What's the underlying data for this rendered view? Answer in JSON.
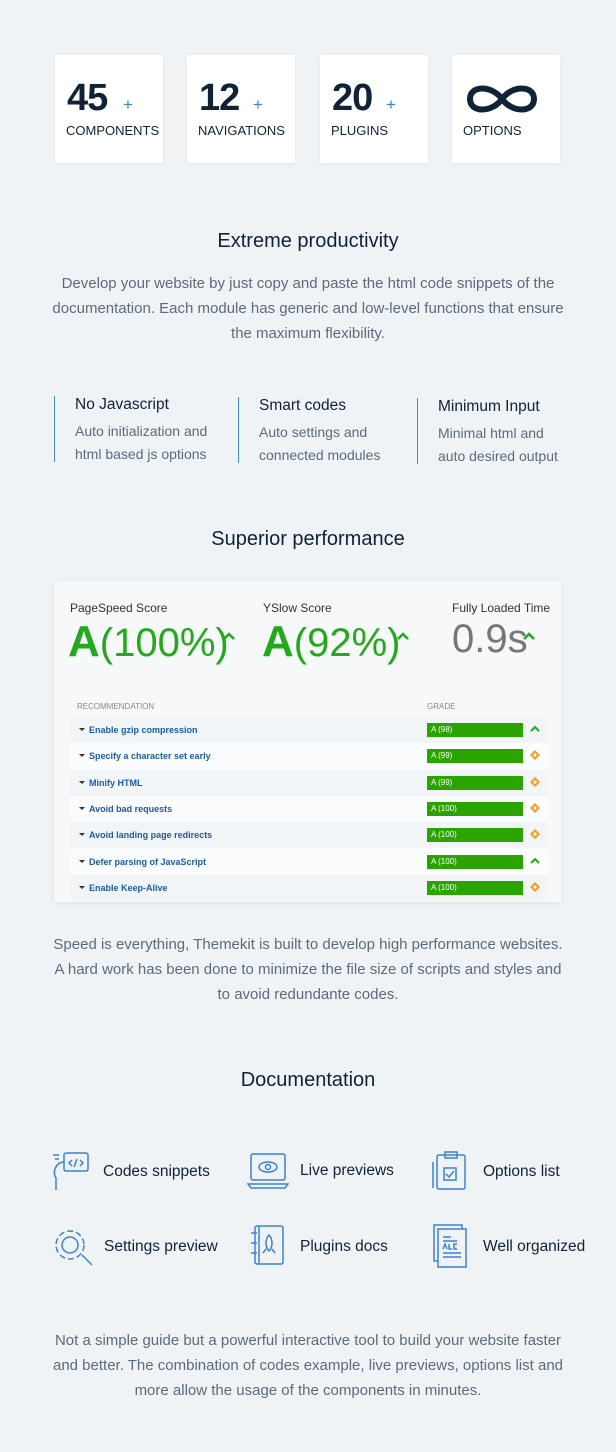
{
  "stats": [
    {
      "number": "45",
      "plus": "+",
      "label": "COMPONENTS"
    },
    {
      "number": "12",
      "plus": "+",
      "label": "NAVIGATIONS"
    },
    {
      "number": "20",
      "plus": "+",
      "label": "PLUGINS"
    },
    {
      "label": "OPTIONS"
    }
  ],
  "productivity": {
    "title": "Extreme productivity",
    "text": "Develop your website by just copy and paste the html code snippets of the documentation. Each module has generic and low-level functions that ensure the maximum flexibility.",
    "features": [
      {
        "title": "No Javascript",
        "text": "Auto initialization and html based js options"
      },
      {
        "title": "Smart codes",
        "text": "Auto settings and connected modules"
      },
      {
        "title": "Minimum Input",
        "text": "Minimal html and auto desired output"
      }
    ]
  },
  "performance": {
    "title": "Superior performance",
    "scores": [
      {
        "label": "PageSpeed Score",
        "grade": "A",
        "value": "(100%)"
      },
      {
        "label": "YSlow Score",
        "grade": "A",
        "value": "(92%)"
      },
      {
        "label": "Fully Loaded Time",
        "value": "0.9s"
      }
    ],
    "table": {
      "header": [
        "RECOMMENDATION",
        "GRADE"
      ],
      "rows": [
        [
          "Enable gzip compression",
          "A (98)"
        ],
        [
          "Specify a character set early",
          "A (99)"
        ],
        [
          "Minify HTML",
          "A (99)"
        ],
        [
          "Avoid bad requests",
          "A (100)"
        ],
        [
          "Avoid landing page redirects",
          "A (100)"
        ],
        [
          "Defer parsing of JavaScript",
          "A (100)"
        ],
        [
          "Enable Keep-Alive",
          "A (100)"
        ]
      ]
    },
    "text": "Speed is everything, Themekit is built to develop high performance websites. A hard work has been done to minimize the file size of scripts and styles and to avoid redundante codes."
  },
  "documentation": {
    "title": "Documentation",
    "items": [
      "Codes snippets",
      "Live previews",
      "Options list",
      "Settings preview",
      "Plugins docs",
      "Well organized"
    ],
    "text": "Not a simple guide but a powerful interactive tool to build your website faster and better. The combination of codes example, live previews, options list and more allow the usage of the components in minutes."
  }
}
